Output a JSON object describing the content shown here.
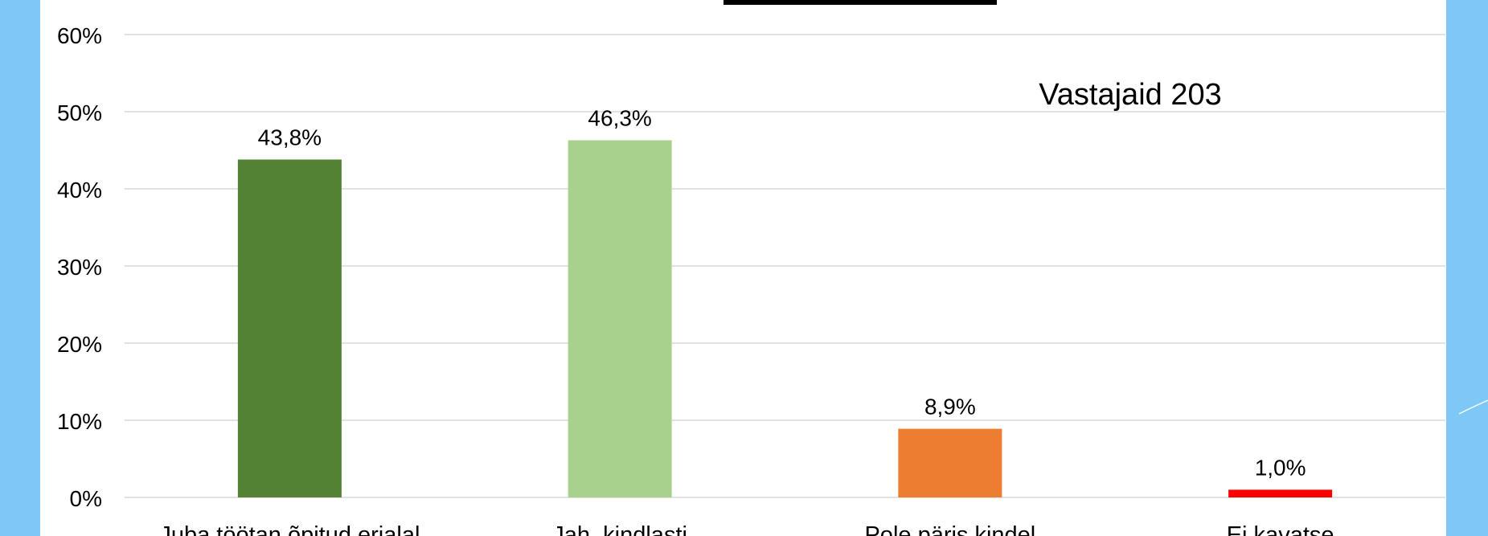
{
  "colors": {
    "frame": "#7ec8f7",
    "panel": "#ffffff",
    "grid": "#d9d9d9",
    "text": "#000000"
  },
  "chart_data": {
    "type": "bar",
    "title": "",
    "xlabel": "",
    "ylabel": "",
    "categories": [
      "Juba töötan õpitud erialal",
      "Jah, kindlasti",
      "Pole päris kindel",
      "Ei kavatse"
    ],
    "values": [
      43.8,
      46.3,
      8.9,
      1.0
    ],
    "value_labels": [
      "43,8%",
      "46,3%",
      "8,9%",
      "1,0%"
    ],
    "bar_colors": [
      "#548235",
      "#a9d18e",
      "#ed7d31",
      "#ff0000"
    ],
    "ylim": [
      0,
      60
    ],
    "yticks": [
      0,
      10,
      20,
      30,
      40,
      50,
      60
    ],
    "ytick_labels": [
      "0%",
      "10%",
      "20%",
      "30%",
      "40%",
      "50%",
      "60%"
    ],
    "grid": true,
    "legend": "none",
    "annotation": "Vastajaid 203"
  }
}
